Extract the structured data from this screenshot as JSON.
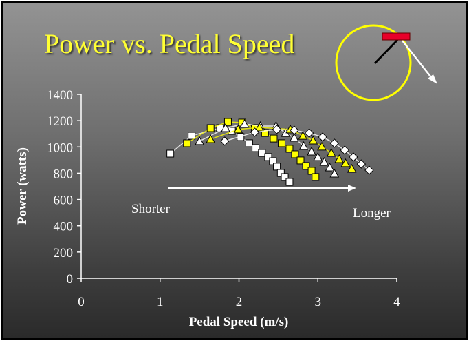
{
  "title": "Power vs. Pedal Speed",
  "colors": {
    "yellow": "#ffff00",
    "white": "#ffffff",
    "pedal": "#e8002a"
  },
  "chart_data": {
    "type": "scatter",
    "xlabel": "Pedal Speed (m/s)",
    "ylabel": "Power (watts)",
    "xlim": [
      0,
      4
    ],
    "ylim": [
      0,
      1400
    ],
    "xticks": [
      "0",
      "1",
      "2",
      "3",
      "4"
    ],
    "yticks": [
      "0",
      "200",
      "400",
      "600",
      "800",
      "1000",
      "1200",
      "1400"
    ],
    "grid": false,
    "annotations": {
      "left": "Shorter",
      "right": "Longer"
    },
    "series": [
      {
        "marker": "square",
        "color": "#ffffff",
        "points": [
          [
            1.13,
            949
          ],
          [
            1.4,
            1085
          ],
          [
            1.76,
            1143
          ],
          [
            1.91,
            1122
          ],
          [
            2.02,
            1075
          ],
          [
            2.13,
            1028
          ],
          [
            2.21,
            991
          ],
          [
            2.29,
            954
          ],
          [
            2.37,
            923
          ],
          [
            2.43,
            891
          ],
          [
            2.48,
            850
          ],
          [
            2.53,
            802
          ],
          [
            2.58,
            771
          ],
          [
            2.64,
            734
          ]
        ]
      },
      {
        "marker": "square",
        "color": "#ffff00",
        "points": [
          [
            1.34,
            1028
          ],
          [
            1.64,
            1143
          ],
          [
            1.86,
            1190
          ],
          [
            2.04,
            1185
          ],
          [
            2.2,
            1143
          ],
          [
            2.33,
            1106
          ],
          [
            2.44,
            1064
          ],
          [
            2.54,
            1028
          ],
          [
            2.64,
            986
          ],
          [
            2.71,
            944
          ],
          [
            2.78,
            897
          ],
          [
            2.85,
            855
          ],
          [
            2.92,
            818
          ],
          [
            2.97,
            771
          ]
        ]
      },
      {
        "marker": "triangle",
        "color": "#ffffff",
        "points": [
          [
            1.5,
            1044
          ],
          [
            1.83,
            1143
          ],
          [
            2.07,
            1175
          ],
          [
            2.27,
            1159
          ],
          [
            2.47,
            1159
          ],
          [
            2.59,
            1106
          ],
          [
            2.7,
            1070
          ],
          [
            2.82,
            1007
          ],
          [
            2.92,
            965
          ],
          [
            3.0,
            923
          ],
          [
            3.08,
            886
          ],
          [
            3.15,
            844
          ],
          [
            3.21,
            797
          ]
        ]
      },
      {
        "marker": "triangle",
        "color": "#ffff00",
        "points": [
          [
            1.64,
            1059
          ],
          [
            1.99,
            1133
          ],
          [
            2.26,
            1148
          ],
          [
            2.65,
            1133
          ],
          [
            2.81,
            1085
          ],
          [
            2.94,
            1049
          ],
          [
            3.05,
            1002
          ],
          [
            3.17,
            954
          ],
          [
            3.27,
            907
          ],
          [
            3.35,
            876
          ],
          [
            3.43,
            834
          ]
        ]
      },
      {
        "marker": "diamond",
        "color": "#ffffff",
        "points": [
          [
            1.82,
            1044
          ],
          [
            2.2,
            1112
          ],
          [
            2.48,
            1133
          ],
          [
            2.7,
            1127
          ],
          [
            2.89,
            1106
          ],
          [
            3.06,
            1075
          ],
          [
            3.21,
            1028
          ],
          [
            3.34,
            975
          ],
          [
            3.45,
            923
          ],
          [
            3.55,
            870
          ],
          [
            3.65,
            823
          ]
        ]
      }
    ]
  }
}
